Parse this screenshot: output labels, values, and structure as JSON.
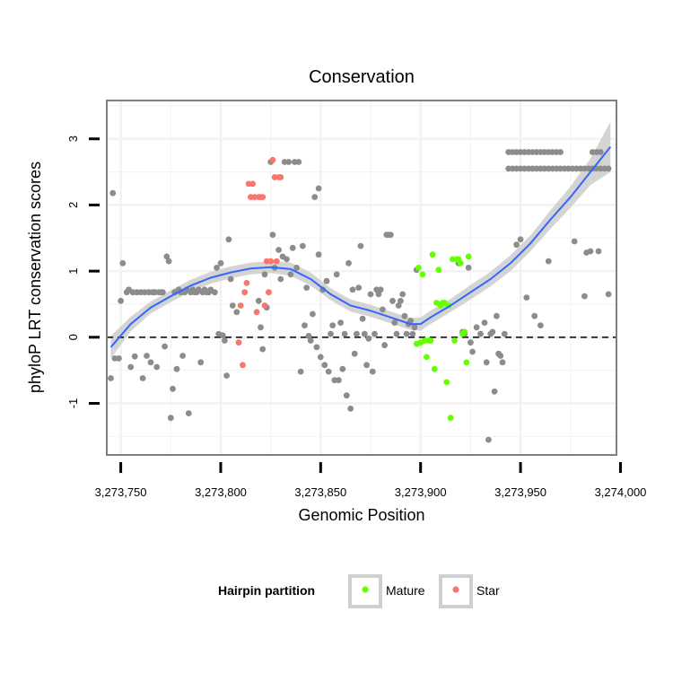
{
  "chart_data": {
    "type": "scatter",
    "title": "Conservation",
    "xlabel": "Genomic Position",
    "ylabel": "phyloP LRT conservation scores",
    "xlim": [
      3273743,
      3273998
    ],
    "ylim": [
      -1.78,
      3.58
    ],
    "xticks": [
      3273750,
      3273800,
      3273850,
      3273900,
      3273950,
      3274000
    ],
    "xtick_labels": [
      "3,273,750",
      "3,273,800",
      "3,273,850",
      "3,273,900",
      "3,273,950",
      "3,274,000"
    ],
    "yticks": [
      -1,
      0,
      1,
      2,
      3
    ],
    "ytick_labels": [
      "-1",
      "0",
      "1",
      "2",
      "3"
    ],
    "reference_line": {
      "y": 0,
      "style": "dashed"
    },
    "colors": {
      "other": "#8c8c8c",
      "mature": "#66ff00",
      "star": "#f8766d",
      "smooth_line": "#3366ff",
      "ribbon": "#cccccc",
      "panel_border": "#7f7f7f",
      "grid": "#f2f2f2"
    },
    "legend": {
      "title": "Hairpin partition",
      "position": "bottom",
      "entries": [
        {
          "label": "Mature",
          "color": "#66ff00"
        },
        {
          "label": "Star",
          "color": "#f8766d"
        }
      ]
    },
    "series": [
      {
        "name": "Other",
        "color": "#8c8c8c",
        "points": [
          [
            3273745,
            -0.62
          ],
          [
            3273746,
            2.18
          ],
          [
            3273747,
            -0.32
          ],
          [
            3273749,
            -0.32
          ],
          [
            3273750,
            0.55
          ],
          [
            3273751,
            1.12
          ],
          [
            3273753,
            0.68
          ],
          [
            3273754,
            0.72
          ],
          [
            3273755,
            -0.45
          ],
          [
            3273756,
            0.68
          ],
          [
            3273757,
            -0.29
          ],
          [
            3273758,
            0.68
          ],
          [
            3273760,
            0.68
          ],
          [
            3273761,
            -0.62
          ],
          [
            3273762,
            0.68
          ],
          [
            3273763,
            -0.28
          ],
          [
            3273764,
            0.68
          ],
          [
            3273765,
            -0.38
          ],
          [
            3273766,
            0.68
          ],
          [
            3273767,
            0.68
          ],
          [
            3273768,
            -0.45
          ],
          [
            3273769,
            0.68
          ],
          [
            3273770,
            0.68
          ],
          [
            3273771,
            0.68
          ],
          [
            3273772,
            -0.14
          ],
          [
            3273773,
            1.22
          ],
          [
            3273774,
            1.15
          ],
          [
            3273775,
            -1.22
          ],
          [
            3273776,
            -0.78
          ],
          [
            3273777,
            0.68
          ],
          [
            3273778,
            -0.48
          ],
          [
            3273779,
            0.72
          ],
          [
            3273780,
            0.68
          ],
          [
            3273781,
            -0.28
          ],
          [
            3273782,
            0.68
          ],
          [
            3273783,
            0.72
          ],
          [
            3273784,
            -1.15
          ],
          [
            3273785,
            0.68
          ],
          [
            3273786,
            0.72
          ],
          [
            3273787,
            0.68
          ],
          [
            3273788,
            0.68
          ],
          [
            3273789,
            0.72
          ],
          [
            3273790,
            -0.38
          ],
          [
            3273791,
            0.68
          ],
          [
            3273792,
            0.72
          ],
          [
            3273793,
            0.68
          ],
          [
            3273794,
            0.68
          ],
          [
            3273795,
            0.72
          ],
          [
            3273797,
            0.68
          ],
          [
            3273798,
            1.05
          ],
          [
            3273799,
            0.05
          ],
          [
            3273800,
            1.12
          ],
          [
            3273801,
            0.03
          ],
          [
            3273802,
            -0.05
          ],
          [
            3273803,
            -0.58
          ],
          [
            3273804,
            1.48
          ],
          [
            3273805,
            0.88
          ],
          [
            3273806,
            0.48
          ],
          [
            3273808,
            0.38
          ],
          [
            3273819,
            0.55
          ],
          [
            3273820,
            0.15
          ],
          [
            3273821,
            -0.18
          ],
          [
            3273822,
            0.95
          ],
          [
            3273823,
            0.45
          ],
          [
            3273825,
            2.65
          ],
          [
            3273826,
            1.55
          ],
          [
            3273827,
            1.05
          ],
          [
            3273829,
            1.32
          ],
          [
            3273830,
            0.88
          ],
          [
            3273831,
            1.22
          ],
          [
            3273832,
            2.65
          ],
          [
            3273833,
            1.18
          ],
          [
            3273834,
            2.65
          ],
          [
            3273835,
            0.95
          ],
          [
            3273836,
            1.35
          ],
          [
            3273837,
            2.65
          ],
          [
            3273838,
            1.05
          ],
          [
            3273839,
            2.65
          ],
          [
            3273840,
            -0.52
          ],
          [
            3273841,
            1.38
          ],
          [
            3273842,
            0.18
          ],
          [
            3273843,
            0.75
          ],
          [
            3273844,
            0.02
          ],
          [
            3273845,
            -0.05
          ],
          [
            3273846,
            0.35
          ],
          [
            3273847,
            2.12
          ],
          [
            3273848,
            -0.15
          ],
          [
            3273849,
            2.25
          ],
          [
            3273849,
            1.25
          ],
          [
            3273850,
            -0.3
          ],
          [
            3273851,
            0.72
          ],
          [
            3273852,
            -0.42
          ],
          [
            3273853,
            0.85
          ],
          [
            3273854,
            -0.52
          ],
          [
            3273855,
            0.05
          ],
          [
            3273856,
            0.18
          ],
          [
            3273857,
            -0.65
          ],
          [
            3273858,
            0.95
          ],
          [
            3273859,
            -0.65
          ],
          [
            3273860,
            0.22
          ],
          [
            3273861,
            -0.48
          ],
          [
            3273862,
            0.05
          ],
          [
            3273863,
            -0.88
          ],
          [
            3273864,
            1.12
          ],
          [
            3273865,
            -1.08
          ],
          [
            3273866,
            0.72
          ],
          [
            3273867,
            -0.25
          ],
          [
            3273868,
            0.05
          ],
          [
            3273869,
            0.75
          ],
          [
            3273870,
            1.38
          ],
          [
            3273871,
            0.28
          ],
          [
            3273872,
            0.05
          ],
          [
            3273873,
            -0.42
          ],
          [
            3273874,
            -0.02
          ],
          [
            3273875,
            0.65
          ],
          [
            3273876,
            -0.52
          ],
          [
            3273877,
            0.05
          ],
          [
            3273878,
            0.72
          ],
          [
            3273879,
            0.65
          ],
          [
            3273880,
            0.72
          ],
          [
            3273881,
            0.42
          ],
          [
            3273882,
            -0.12
          ],
          [
            3273883,
            1.55
          ],
          [
            3273884,
            1.55
          ],
          [
            3273885,
            1.55
          ],
          [
            3273886,
            0.55
          ],
          [
            3273887,
            0.22
          ],
          [
            3273888,
            0.05
          ],
          [
            3273889,
            0.48
          ],
          [
            3273890,
            0.55
          ],
          [
            3273891,
            0.65
          ],
          [
            3273892,
            0.32
          ],
          [
            3273893,
            0.05
          ],
          [
            3273894,
            0.2
          ],
          [
            3273895,
            0.25
          ],
          [
            3273896,
            0.05
          ],
          [
            3273897,
            0.15
          ],
          [
            3273898,
            1.02
          ],
          [
            3273919,
            1.12
          ],
          [
            3273921,
            0.08
          ],
          [
            3273922,
            0.05
          ],
          [
            3273924,
            1.05
          ],
          [
            3273925,
            -0.08
          ],
          [
            3273926,
            -0.22
          ],
          [
            3273928,
            0.15
          ],
          [
            3273930,
            0.05
          ],
          [
            3273932,
            0.22
          ],
          [
            3273933,
            -0.38
          ],
          [
            3273934,
            -1.55
          ],
          [
            3273935,
            0.05
          ],
          [
            3273936,
            0.08
          ],
          [
            3273937,
            -0.82
          ],
          [
            3273938,
            0.32
          ],
          [
            3273939,
            -0.25
          ],
          [
            3273940,
            -0.28
          ],
          [
            3273941,
            -0.38
          ],
          [
            3273942,
            0.05
          ],
          [
            3273944,
            2.8
          ],
          [
            3273944,
            2.55
          ],
          [
            3273946,
            2.8
          ],
          [
            3273946,
            2.55
          ],
          [
            3273948,
            2.8
          ],
          [
            3273948,
            2.55
          ],
          [
            3273948,
            1.4
          ],
          [
            3273950,
            2.8
          ],
          [
            3273950,
            2.55
          ],
          [
            3273950,
            1.48
          ],
          [
            3273952,
            2.8
          ],
          [
            3273952,
            2.55
          ],
          [
            3273953,
            0.6
          ],
          [
            3273954,
            2.8
          ],
          [
            3273954,
            2.55
          ],
          [
            3273956,
            2.8
          ],
          [
            3273956,
            2.55
          ],
          [
            3273957,
            0.32
          ],
          [
            3273958,
            2.8
          ],
          [
            3273958,
            2.55
          ],
          [
            3273960,
            2.8
          ],
          [
            3273960,
            2.55
          ],
          [
            3273960,
            0.18
          ],
          [
            3273962,
            2.8
          ],
          [
            3273962,
            2.55
          ],
          [
            3273964,
            2.8
          ],
          [
            3273964,
            2.55
          ],
          [
            3273964,
            1.15
          ],
          [
            3273966,
            2.8
          ],
          [
            3273966,
            2.55
          ],
          [
            3273968,
            2.8
          ],
          [
            3273968,
            2.55
          ],
          [
            3273970,
            2.8
          ],
          [
            3273970,
            2.55
          ],
          [
            3273972,
            2.55
          ],
          [
            3273974,
            2.55
          ],
          [
            3273976,
            2.55
          ],
          [
            3273977,
            1.45
          ],
          [
            3273978,
            2.55
          ],
          [
            3273980,
            2.55
          ],
          [
            3273982,
            2.55
          ],
          [
            3273982,
            0.62
          ],
          [
            3273983,
            1.28
          ],
          [
            3273984,
            2.55
          ],
          [
            3273985,
            1.3
          ],
          [
            3273986,
            2.55
          ],
          [
            3273986,
            2.8
          ],
          [
            3273988,
            2.55
          ],
          [
            3273988,
            2.8
          ],
          [
            3273989,
            1.3
          ],
          [
            3273990,
            2.55
          ],
          [
            3273990,
            2.8
          ],
          [
            3273992,
            2.55
          ],
          [
            3273994,
            2.55
          ],
          [
            3273994,
            0.65
          ]
        ]
      },
      {
        "name": "Mature",
        "color": "#66ff00",
        "points": [
          [
            3273898,
            -0.1
          ],
          [
            3273899,
            1.05
          ],
          [
            3273900,
            -0.08
          ],
          [
            3273901,
            0.95
          ],
          [
            3273902,
            -0.05
          ],
          [
            3273903,
            -0.3
          ],
          [
            3273904,
            -0.05
          ],
          [
            3273905,
            -0.05
          ],
          [
            3273906,
            1.25
          ],
          [
            3273907,
            -0.48
          ],
          [
            3273908,
            0.52
          ],
          [
            3273909,
            1.02
          ],
          [
            3273910,
            0.48
          ],
          [
            3273911,
            0.52
          ],
          [
            3273912,
            0.52
          ],
          [
            3273913,
            -0.68
          ],
          [
            3273914,
            0.48
          ],
          [
            3273915,
            -1.22
          ],
          [
            3273916,
            1.18
          ],
          [
            3273917,
            -0.05
          ],
          [
            3273918,
            1.18
          ],
          [
            3273919,
            1.18
          ],
          [
            3273920,
            1.12
          ],
          [
            3273921,
            0.05
          ],
          [
            3273922,
            0.08
          ],
          [
            3273923,
            -0.38
          ],
          [
            3273924,
            1.22
          ]
        ]
      },
      {
        "name": "Star",
        "color": "#f8766d",
        "points": [
          [
            3273809,
            -0.08
          ],
          [
            3273810,
            0.48
          ],
          [
            3273811,
            -0.42
          ],
          [
            3273812,
            0.68
          ],
          [
            3273813,
            0.82
          ],
          [
            3273814,
            2.32
          ],
          [
            3273815,
            2.12
          ],
          [
            3273816,
            2.32
          ],
          [
            3273817,
            2.12
          ],
          [
            3273818,
            0.38
          ],
          [
            3273819,
            2.12
          ],
          [
            3273820,
            2.12
          ],
          [
            3273821,
            2.12
          ],
          [
            3273822,
            0.48
          ],
          [
            3273823,
            1.15
          ],
          [
            3273824,
            0.68
          ],
          [
            3273825,
            1.15
          ],
          [
            3273826,
            2.68
          ],
          [
            3273827,
            2.42
          ],
          [
            3273828,
            1.15
          ],
          [
            3273829,
            2.42
          ],
          [
            3273830,
            2.42
          ]
        ]
      }
    ],
    "smooth": {
      "x": [
        3273745,
        3273755,
        3273765,
        3273775,
        3273785,
        3273795,
        3273805,
        3273815,
        3273825,
        3273835,
        3273845,
        3273855,
        3273865,
        3273875,
        3273885,
        3273895,
        3273900,
        3273905,
        3273915,
        3273925,
        3273935,
        3273945,
        3273955,
        3273965,
        3273975,
        3273985,
        3273995
      ],
      "y": [
        -0.15,
        0.2,
        0.45,
        0.62,
        0.78,
        0.9,
        0.98,
        1.04,
        1.06,
        1.03,
        0.88,
        0.65,
        0.48,
        0.4,
        0.3,
        0.2,
        0.2,
        0.3,
        0.48,
        0.68,
        0.88,
        1.12,
        1.42,
        1.78,
        2.12,
        2.5,
        2.88
      ],
      "lower": [
        -0.32,
        0.09,
        0.36,
        0.53,
        0.69,
        0.81,
        0.89,
        0.95,
        0.97,
        0.93,
        0.78,
        0.56,
        0.39,
        0.31,
        0.21,
        0.11,
        0.1,
        0.2,
        0.38,
        0.57,
        0.77,
        1.0,
        1.3,
        1.64,
        1.96,
        2.3,
        2.5
      ],
      "upper": [
        0.02,
        0.31,
        0.54,
        0.71,
        0.87,
        0.99,
        1.07,
        1.13,
        1.15,
        1.13,
        0.98,
        0.74,
        0.57,
        0.49,
        0.39,
        0.29,
        0.3,
        0.4,
        0.58,
        0.79,
        0.99,
        1.24,
        1.54,
        1.92,
        2.28,
        2.7,
        3.26
      ]
    }
  }
}
